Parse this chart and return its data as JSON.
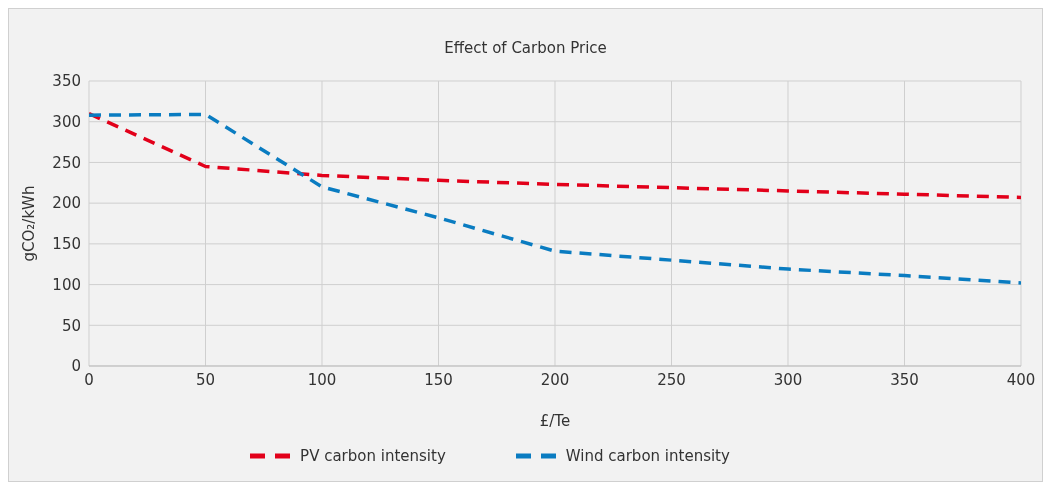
{
  "chart_data": {
    "type": "line",
    "title": "Effect of Carbon Price",
    "xlabel": "£/Te",
    "ylabel": "gCO₂/kWh",
    "x": [
      0,
      50,
      100,
      150,
      200,
      250,
      300,
      350,
      400
    ],
    "series": [
      {
        "name": "PV carbon intensity",
        "color": "#e2001a",
        "values": [
          310,
          245,
          234,
          228,
          223,
          219,
          215,
          211,
          207
        ]
      },
      {
        "name": "Wind carbon intensity",
        "color": "#0a7cc1",
        "values": [
          308,
          309,
          220,
          182,
          141,
          130,
          119,
          111,
          102
        ]
      }
    ],
    "xlim": [
      0,
      400
    ],
    "xticks": [
      0,
      50,
      100,
      150,
      200,
      250,
      300,
      350,
      400
    ],
    "ylim": [
      0,
      350
    ],
    "yticks": [
      0,
      50,
      100,
      150,
      200,
      250,
      300,
      350
    ],
    "grid": true,
    "legend": "bottom",
    "marker": "none",
    "line_style": "dashed"
  }
}
